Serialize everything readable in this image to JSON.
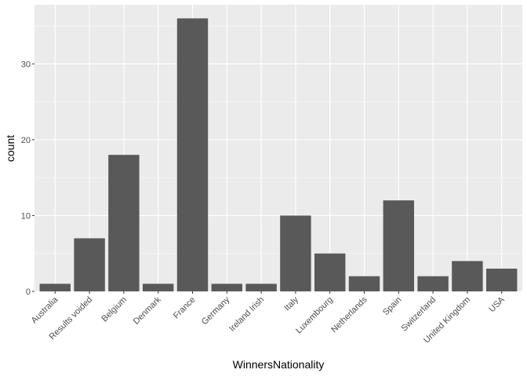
{
  "chart_data": {
    "type": "bar",
    "categories": [
      "Australia",
      "Results voided",
      "Belgium",
      "Denmark",
      "France",
      "Germany",
      "Ireland Irish",
      "Italy",
      "Luxembourg",
      "Netherlands",
      "Spain",
      "Switzerland",
      "United Kingdom",
      "USA"
    ],
    "values": [
      1,
      7,
      18,
      1,
      36,
      1,
      1,
      10,
      5,
      2,
      12,
      2,
      4,
      3
    ],
    "title": "",
    "xlabel": "WinnersNationality",
    "ylabel": "count",
    "ylim": [
      0,
      37.8
    ],
    "yticks": [
      0,
      10,
      20,
      30
    ],
    "grid": true,
    "colors": {
      "panel": "#ebebeb",
      "grid_major": "#ffffff",
      "bar": "#595959",
      "tick_text": "#4d4d4d",
      "tick_mark": "#333333"
    }
  }
}
